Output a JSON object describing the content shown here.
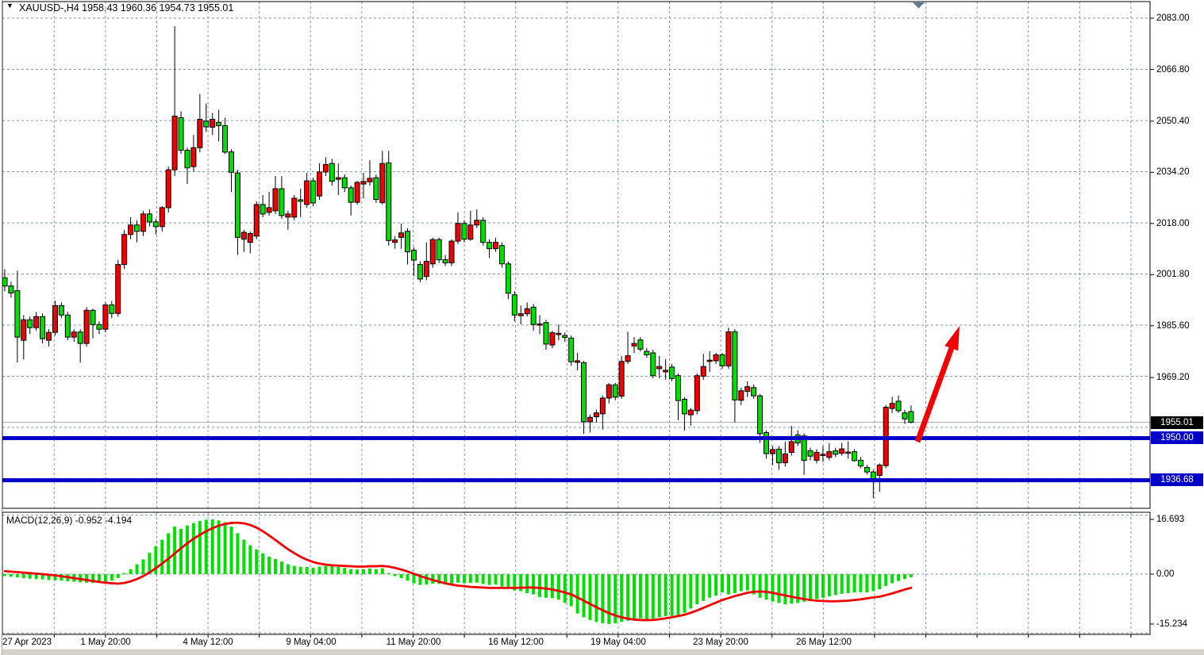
{
  "header": {
    "marker_icon": "▼",
    "title": "XAUUSD-,H4  1958.43 1960.36 1954.73 1955.01"
  },
  "price_axis": {
    "tick_labels": [
      "2083.00",
      "2066.80",
      "2050.40",
      "2034.20",
      "2018.00",
      "2001.80",
      "1985.60",
      "1969.20"
    ],
    "current_price_badge": "1955.01",
    "level_badges": [
      "1950.00",
      "1936.68"
    ]
  },
  "macd_panel": {
    "label": "MACD(12,26,9) -0.952 -4.194",
    "tick_labels": [
      "16.693",
      "0.00",
      "-15.234"
    ]
  },
  "time_axis": {
    "labels": [
      "27 Apr 2023",
      "1 May 20:00",
      "4 May 12:00",
      "9 May 04:00",
      "11 May 20:00",
      "16 May 12:00",
      "19 May 04:00",
      "23 May 20:00",
      "26 May 12:00"
    ]
  },
  "colors": {
    "background": "#FFFFFF",
    "grid": "#8499AC",
    "bull_candle": "#F20000",
    "bear_candle": "#00DF00",
    "candle_outline": "#000000",
    "macd_histogram": "#00DF00",
    "macd_signal": "#F20000",
    "support_line": "#0000C8",
    "current_price_line": "#A8A8A8",
    "arrow": "#F20000",
    "shift_marker": "#5E7A8C",
    "frame": "#000000",
    "badge_text": "#FFFFFF"
  },
  "chart_data": {
    "type": "candlestick",
    "symbol": "XAUUSD-",
    "timeframe": "H4",
    "title": "XAUUSD-,H4",
    "last_ohlc": {
      "open": 1958.43,
      "high": 1960.36,
      "low": 1954.73,
      "close": 1955.01
    },
    "price_ticks": [
      2083.0,
      2066.8,
      2050.4,
      2034.2,
      2018.0,
      2001.8,
      1985.6,
      1969.2
    ],
    "price_grid_step": 16.2,
    "x_labels": [
      "27 Apr 2023",
      "1 May 20:00",
      "4 May 12:00",
      "9 May 04:00",
      "11 May 20:00",
      "16 May 12:00",
      "19 May 04:00",
      "23 May 20:00",
      "26 May 12:00"
    ],
    "horizontal_lines": [
      1950.0,
      1936.68
    ],
    "current_price": 1955.01,
    "annotation_arrow": {
      "shape": "up-right-arrow",
      "from_price": 1949.0,
      "to_price": 1987.0
    },
    "candles": [
      [
        2000.8,
        2003.5,
        1996.5,
        1998.2
      ],
      [
        1998.2,
        1999.5,
        1994.5,
        1996
      ],
      [
        1996.7,
        2003,
        1974,
        1982
      ],
      [
        1981,
        1989,
        1975,
        1987.5
      ],
      [
        1987.5,
        1988.5,
        1983,
        1985
      ],
      [
        1985,
        1990,
        1984,
        1988.5
      ],
      [
        1988.5,
        1989.5,
        1980,
        1981.5
      ],
      [
        1981,
        1984.5,
        1979,
        1983.5
      ],
      [
        1983.5,
        1993.5,
        1982.5,
        1992
      ],
      [
        1992,
        1993,
        1988,
        1989
      ],
      [
        1989,
        1990,
        1981,
        1982
      ],
      [
        1982,
        1984.5,
        1980.5,
        1983.6
      ],
      [
        1983.6,
        1984.5,
        1974,
        1980
      ],
      [
        1980,
        1991.5,
        1979,
        1990.5
      ],
      [
        1990.5,
        1991,
        1981.6,
        1986
      ],
      [
        1986,
        1987,
        1983,
        1984.5
      ],
      [
        1984.5,
        1993,
        1983.5,
        1992.2
      ],
      [
        1992.2,
        1993.5,
        1988,
        1989.5
      ],
      [
        1989.5,
        2006.5,
        1988.5,
        2005
      ],
      [
        2005,
        2016,
        2003.5,
        2014.5
      ],
      [
        2014.5,
        2020,
        2013,
        2017.5
      ],
      [
        2017.5,
        2019,
        2012,
        2015.5
      ],
      [
        2015.5,
        2022,
        2014,
        2021
      ],
      [
        2021,
        2022.5,
        2017,
        2018.5
      ],
      [
        2018.5,
        2019.5,
        2014.5,
        2017
      ],
      [
        2017,
        2023.5,
        2015.5,
        2023
      ],
      [
        2023,
        2036,
        2021.5,
        2035
      ],
      [
        2035,
        2080.5,
        2033,
        2052
      ],
      [
        2051.5,
        2053.5,
        2040,
        2041.2
      ],
      [
        2041.2,
        2042,
        2030.5,
        2035.6
      ],
      [
        2036,
        2046,
        2034.5,
        2042
      ],
      [
        2042,
        2059,
        2040.5,
        2051
      ],
      [
        2050.4,
        2056,
        2047,
        2048.6
      ],
      [
        2048.5,
        2053,
        2046,
        2051
      ],
      [
        2050,
        2054,
        2044,
        2049
      ],
      [
        2049,
        2051.5,
        2040,
        2040.6
      ],
      [
        2040.7,
        2041.5,
        2028,
        2034.2
      ],
      [
        2034,
        2035,
        2008,
        2013.6
      ],
      [
        2013,
        2016,
        2009,
        2015.2
      ],
      [
        2012,
        2015.5,
        2008.5,
        2014.8
      ],
      [
        2014,
        2025,
        2013,
        2024
      ],
      [
        2024,
        2027,
        2020,
        2021
      ],
      [
        2021.5,
        2028,
        2020.5,
        2023
      ],
      [
        2022,
        2033,
        2021,
        2029
      ],
      [
        2029,
        2033,
        2019.5,
        2020.5
      ],
      [
        2020,
        2022,
        2016,
        2021
      ],
      [
        2020,
        2027,
        2019,
        2026
      ],
      [
        2025.5,
        2029,
        2020,
        2025
      ],
      [
        2024,
        2034,
        2023,
        2031.5
      ],
      [
        2031.5,
        2032.5,
        2023.5,
        2024.5
      ],
      [
        2026.7,
        2037,
        2025.5,
        2034.3
      ],
      [
        2034.3,
        2039,
        2033,
        2036.7
      ],
      [
        2037,
        2038.5,
        2030,
        2031.4
      ],
      [
        2032,
        2037,
        2027,
        2032.5
      ],
      [
        2032.5,
        2033.5,
        2028,
        2029.3
      ],
      [
        2029.3,
        2030,
        2020.5,
        2024.7
      ],
      [
        2024.7,
        2031.5,
        2024,
        2031
      ],
      [
        2030.5,
        2034,
        2026,
        2031.3
      ],
      [
        2031.2,
        2038,
        2030,
        2032.3
      ],
      [
        2032.5,
        2033.5,
        2024.5,
        2025.6
      ],
      [
        2024.6,
        2041,
        2024,
        2037
      ],
      [
        2037.2,
        2041,
        2011,
        2012.6
      ],
      [
        2012,
        2014,
        2010,
        2012.8
      ],
      [
        2013.6,
        2018,
        2010,
        2015
      ],
      [
        2015.5,
        2016.5,
        2005,
        2009
      ],
      [
        2009.5,
        2010.5,
        2001.3,
        2006.4
      ],
      [
        2005,
        2006,
        1999.4,
        2000.4
      ],
      [
        2001.2,
        2012,
        2000,
        2006
      ],
      [
        2005.2,
        2013.5,
        2004,
        2012.9
      ],
      [
        2012.9,
        2013.5,
        2005.5,
        2006.5
      ],
      [
        2006.5,
        2008,
        2004.5,
        2005.5
      ],
      [
        2005.5,
        2013,
        2004.5,
        2012.4
      ],
      [
        2012.4,
        2021.5,
        2011.5,
        2018
      ],
      [
        2018,
        2019,
        2012,
        2013
      ],
      [
        2013,
        2022,
        2012.5,
        2017.5
      ],
      [
        2017.5,
        2022.5,
        2016.5,
        2019
      ],
      [
        2019,
        2020,
        2011,
        2012
      ],
      [
        2012,
        2013,
        2007,
        2010
      ],
      [
        2010,
        2013.5,
        2009,
        2012
      ],
      [
        2011,
        2012,
        2004,
        2005.2
      ],
      [
        2005.2,
        2006,
        1994,
        1995.9
      ],
      [
        1995.4,
        1996.5,
        1987,
        1989
      ],
      [
        1988.8,
        1992,
        1986,
        1989.4
      ],
      [
        1989.4,
        1993,
        1988.5,
        1991
      ],
      [
        1991.5,
        1992.5,
        1984,
        1986
      ],
      [
        1986,
        1989,
        1983,
        1986.2
      ],
      [
        1986.6,
        1987.5,
        1978,
        1979.8
      ],
      [
        1979.5,
        1984,
        1978.5,
        1983.4
      ],
      [
        1983,
        1986,
        1981,
        1983.2
      ],
      [
        1982.5,
        1983.5,
        1980.5,
        1981.9
      ],
      [
        1981.7,
        1982.5,
        1973,
        1974.2
      ],
      [
        1974,
        1977,
        1971.5,
        1974.5
      ],
      [
        1973.9,
        1974.5,
        1951.4,
        1955.2
      ],
      [
        1955.2,
        1957.5,
        1951.8,
        1956.6
      ],
      [
        1956.8,
        1959,
        1955,
        1958
      ],
      [
        1957.7,
        1963.5,
        1952.7,
        1962.7
      ],
      [
        1962.7,
        1967.5,
        1961,
        1966.9
      ],
      [
        1966.9,
        1967.5,
        1962,
        1963
      ],
      [
        1963.3,
        1976,
        1962.5,
        1974.3
      ],
      [
        1974.3,
        1983.7,
        1973.5,
        1976.1
      ],
      [
        1979.2,
        1982,
        1977,
        1980
      ],
      [
        1981.1,
        1982,
        1977.5,
        1978.2
      ],
      [
        1977.5,
        1978.5,
        1975.5,
        1976.4
      ],
      [
        1977,
        1978,
        1969,
        1969.8
      ],
      [
        1972,
        1976,
        1969,
        1972.7
      ],
      [
        1971,
        1975,
        1968.5,
        1971.5
      ],
      [
        1972.5,
        1973.5,
        1968,
        1968.9
      ],
      [
        1969.8,
        1970.5,
        1955.6,
        1961.9
      ],
      [
        1962.3,
        1963,
        1952.3,
        1957.7
      ],
      [
        1957.4,
        1959.5,
        1954,
        1958.9
      ],
      [
        1958.7,
        1970.5,
        1957.5,
        1969.8
      ],
      [
        1969.6,
        1976.7,
        1968.5,
        1972.7
      ],
      [
        1974.5,
        1977.5,
        1971,
        1974.7
      ],
      [
        1974.5,
        1977,
        1973.5,
        1976.4
      ],
      [
        1976.4,
        1977,
        1972,
        1972.9
      ],
      [
        1972.9,
        1985,
        1972,
        1983.7
      ],
      [
        1983.7,
        1984.5,
        1955,
        1962.1
      ],
      [
        1962,
        1966,
        1960.5,
        1965
      ],
      [
        1964.8,
        1968,
        1963,
        1966.3
      ],
      [
        1966,
        1967,
        1962.5,
        1963.4
      ],
      [
        1963.4,
        1964,
        1948.5,
        1951.4
      ],
      [
        1951.8,
        1952.5,
        1943.5,
        1945.1
      ],
      [
        1945.1,
        1947.5,
        1941.5,
        1946.4
      ],
      [
        1946.5,
        1947.5,
        1940,
        1942.2
      ],
      [
        1942.2,
        1949,
        1941,
        1945
      ],
      [
        1945.5,
        1953.9,
        1944.5,
        1948.9
      ],
      [
        1951,
        1952.5,
        1947.5,
        1948.5
      ],
      [
        1950.7,
        1951.5,
        1938.4,
        1943
      ],
      [
        1946,
        1947,
        1943,
        1944.3
      ],
      [
        1943,
        1946.5,
        1942,
        1945.5
      ],
      [
        1944.8,
        1947.5,
        1942.5,
        1944.9
      ],
      [
        1943.9,
        1948.4,
        1943,
        1945.7
      ],
      [
        1946,
        1947,
        1944,
        1944.9
      ],
      [
        1945.2,
        1948.5,
        1944.5,
        1946.6
      ],
      [
        1945.5,
        1949,
        1943.5,
        1945.6
      ],
      [
        1945.7,
        1946.5,
        1942.5,
        1942.9
      ],
      [
        1943,
        1944,
        1940.5,
        1941.2
      ],
      [
        1940.7,
        1941.5,
        1938.5,
        1939.3
      ],
      [
        1939.3,
        1940,
        1931,
        1937.2
      ],
      [
        1938.2,
        1942,
        1933,
        1941.5
      ],
      [
        1941.3,
        1960.5,
        1940.5,
        1959.8
      ],
      [
        1959.4,
        1963.1,
        1958,
        1961
      ],
      [
        1961.7,
        1963.5,
        1958,
        1958.7
      ],
      [
        1958,
        1959,
        1954.5,
        1956.1
      ],
      [
        1958.43,
        1960.36,
        1954.73,
        1955.01
      ]
    ],
    "macd": {
      "type": "bar+line",
      "params": [
        12,
        26,
        9
      ],
      "last_macd": -0.952,
      "last_signal": -4.194,
      "scale_max": 16.693,
      "scale_min": -15.234,
      "histogram": [
        -0.6,
        -0.8,
        -1.0,
        -1.2,
        -1.4,
        -1.5,
        -1.6,
        -1.8,
        -1.9,
        -2.0,
        -2.2,
        -2.3,
        -2.5,
        -2.6,
        -2.7,
        -2.6,
        -2.4,
        -2.0,
        -1.2,
        0.3,
        1.5,
        3.0,
        4.5,
        6.5,
        8.5,
        10.5,
        12.5,
        14.5,
        13.8,
        14.8,
        15.6,
        16.2,
        16.6,
        16.69,
        16.4,
        15.8,
        14.5,
        12.5,
        10.5,
        8.8,
        7.5,
        6.3,
        5.3,
        4.6,
        3.8,
        3.0,
        2.5,
        2.2,
        2.2,
        2.0,
        2.3,
        2.5,
        2.4,
        2.2,
        1.9,
        1.5,
        1.4,
        1.5,
        1.7,
        1.5,
        1.8,
        0.3,
        -0.6,
        -1.2,
        -2.0,
        -2.8,
        -3.3,
        -3.2,
        -2.9,
        -3.0,
        -3.2,
        -3.0,
        -2.6,
        -2.8,
        -2.7,
        -2.6,
        -3.0,
        -3.3,
        -3.2,
        -3.8,
        -4.5,
        -5.0,
        -5.2,
        -5.8,
        -6.2,
        -7.0,
        -7.2,
        -7.3,
        -7.8,
        -8.8,
        -9.8,
        -12.0,
        -13.2,
        -14.0,
        -14.6,
        -15.0,
        -15.23,
        -15.0,
        -14.6,
        -14.2,
        -13.8,
        -13.5,
        -13.8,
        -13.6,
        -13.2,
        -12.8,
        -12.8,
        -12.5,
        -11.8,
        -10.5,
        -9.2,
        -8.2,
        -7.2,
        -6.6,
        -5.6,
        -6.2,
        -5.8,
        -5.2,
        -5.0,
        -6.2,
        -7.2,
        -7.8,
        -8.4,
        -8.8,
        -9.2,
        -9.0,
        -8.8,
        -8.4,
        -8.0,
        -7.6,
        -7.2,
        -6.8,
        -6.4,
        -6.0,
        -5.8,
        -5.6,
        -5.5,
        -5.6,
        -5.2,
        -4.6,
        -3.6,
        -2.8,
        -2.1,
        -1.5,
        -0.952
      ],
      "signal": [
        0.9,
        0.75,
        0.6,
        0.45,
        0.3,
        0.15,
        0.0,
        -0.2,
        -0.4,
        -0.65,
        -0.9,
        -1.2,
        -1.5,
        -1.8,
        -2.1,
        -2.4,
        -2.6,
        -2.8,
        -2.9,
        -2.7,
        -2.2,
        -1.5,
        -0.6,
        0.5,
        1.8,
        3.2,
        4.7,
        6.3,
        7.9,
        9.4,
        10.8,
        12.0,
        13.1,
        14.0,
        14.8,
        15.3,
        15.6,
        15.7,
        15.5,
        15.0,
        14.2,
        13.1,
        11.8,
        10.4,
        9.0,
        7.6,
        6.4,
        5.3,
        4.4,
        3.7,
        3.2,
        2.9,
        2.7,
        2.6,
        2.5,
        2.4,
        2.3,
        2.3,
        2.4,
        2.4,
        2.5,
        2.3,
        1.9,
        1.4,
        0.8,
        0.1,
        -0.6,
        -1.2,
        -1.8,
        -2.3,
        -2.8,
        -3.2,
        -3.5,
        -3.7,
        -3.9,
        -4.0,
        -4.1,
        -4.2,
        -4.2,
        -4.2,
        -4.2,
        -4.2,
        -4.15,
        -4.1,
        -4.1,
        -4.2,
        -4.4,
        -4.7,
        -5.1,
        -5.6,
        -6.2,
        -7.1,
        -8.1,
        -9.1,
        -10.1,
        -11.0,
        -11.9,
        -12.6,
        -13.2,
        -13.6,
        -13.9,
        -14.0,
        -14.05,
        -14.0,
        -13.8,
        -13.5,
        -13.2,
        -12.8,
        -12.4,
        -11.8,
        -11.1,
        -10.3,
        -9.5,
        -8.7,
        -7.9,
        -7.3,
        -6.7,
        -6.2,
        -5.7,
        -5.4,
        -5.3,
        -5.4,
        -5.7,
        -6.1,
        -6.5,
        -6.9,
        -7.3,
        -7.6,
        -7.9,
        -8.1,
        -8.2,
        -8.3,
        -8.3,
        -8.2,
        -8.1,
        -7.9,
        -7.7,
        -7.4,
        -7.1,
        -6.9,
        -6.4,
        -5.9,
        -5.3,
        -4.7,
        -4.194
      ]
    }
  }
}
